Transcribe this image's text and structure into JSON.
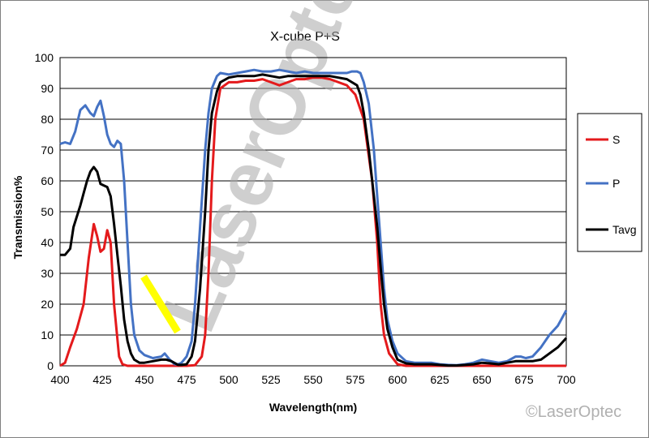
{
  "chart_data": {
    "type": "line",
    "title": "X-cube P+S",
    "xlabel": "Wavelength(nm)",
    "ylabel": "Transmission%",
    "xlim": [
      400,
      700
    ],
    "ylim": [
      0,
      100
    ],
    "x_ticks": [
      400,
      425,
      450,
      475,
      500,
      525,
      550,
      575,
      600,
      625,
      650,
      675,
      700
    ],
    "y_ticks": [
      0,
      10,
      20,
      30,
      40,
      50,
      60,
      70,
      80,
      90,
      100
    ],
    "grid": "horizontal",
    "legend_position": "right",
    "series": [
      {
        "name": "S",
        "color": "#e41a1c",
        "x": [
          400,
          403,
          406,
          410,
          414,
          417,
          420,
          422,
          424,
          426,
          428,
          430,
          432,
          435,
          437,
          440,
          445,
          450,
          460,
          470,
          475,
          480,
          484,
          486,
          488,
          490,
          492,
          495,
          500,
          505,
          510,
          515,
          520,
          525,
          530,
          535,
          540,
          545,
          550,
          555,
          560,
          565,
          570,
          575,
          580,
          585,
          588,
          590,
          592,
          595,
          600,
          605,
          610,
          620,
          630,
          640,
          650,
          660,
          670,
          680,
          690,
          700
        ],
        "y": [
          0,
          1,
          6,
          12,
          20,
          35,
          46,
          42,
          37,
          38,
          44,
          40,
          20,
          3,
          0.5,
          0,
          0,
          0,
          0,
          0,
          0,
          0.2,
          3,
          10,
          30,
          60,
          80,
          90,
          92,
          92,
          92.5,
          92.5,
          93,
          92,
          91,
          92,
          93,
          93,
          93.5,
          93.5,
          93,
          92,
          91,
          88,
          80,
          60,
          40,
          20,
          10,
          4,
          0.5,
          0,
          0,
          0,
          0,
          0,
          0,
          0,
          0,
          0,
          0,
          0
        ]
      },
      {
        "name": "P",
        "color": "#4472c4",
        "x": [
          400,
          403,
          406,
          409,
          412,
          415,
          418,
          420,
          422,
          424,
          426,
          428,
          430,
          432,
          434,
          436,
          438,
          440,
          442,
          444,
          447,
          450,
          455,
          460,
          462,
          465,
          468,
          470,
          472,
          475,
          478,
          480,
          483,
          486,
          488,
          490,
          493,
          495,
          500,
          505,
          510,
          515,
          520,
          525,
          530,
          535,
          540,
          545,
          550,
          555,
          560,
          565,
          570,
          573,
          576,
          578,
          580,
          583,
          586,
          588,
          590,
          592,
          594,
          597,
          600,
          605,
          610,
          615,
          620,
          625,
          630,
          635,
          640,
          645,
          650,
          655,
          660,
          665,
          670,
          673,
          676,
          680,
          685,
          690,
          695,
          700
        ],
        "y": [
          72,
          72.5,
          72,
          76,
          83,
          84.5,
          82,
          81,
          84,
          86,
          81,
          75,
          72,
          71,
          73,
          72,
          60,
          40,
          20,
          10,
          5,
          3.5,
          2.5,
          3,
          4,
          2,
          0.5,
          0.5,
          1,
          3,
          8,
          20,
          45,
          70,
          82,
          90,
          94,
          95,
          94.5,
          95,
          95.5,
          96,
          95.5,
          95.5,
          96,
          95.5,
          95,
          95.5,
          95,
          95,
          95,
          95,
          95,
          95.5,
          95.5,
          95,
          92,
          85,
          70,
          55,
          40,
          25,
          15,
          8,
          4,
          1.5,
          1,
          1,
          1,
          0.5,
          0.3,
          0.2,
          0.5,
          1,
          2,
          1.5,
          1,
          1.5,
          3,
          3,
          2.5,
          3,
          6,
          10,
          13,
          18
        ]
      },
      {
        "name": "Tavg",
        "color": "#000000",
        "x": [
          400,
          403,
          406,
          408,
          412,
          414,
          416,
          418,
          420,
          422,
          424,
          426,
          428,
          430,
          432,
          434,
          436,
          438,
          440,
          442,
          444,
          447,
          450,
          455,
          460,
          463,
          466,
          470,
          472,
          475,
          478,
          480,
          483,
          486,
          488,
          490,
          493,
          495,
          500,
          505,
          510,
          515,
          520,
          525,
          530,
          535,
          540,
          545,
          550,
          555,
          560,
          565,
          570,
          573,
          576,
          578,
          580,
          583,
          586,
          588,
          590,
          592,
          594,
          597,
          600,
          605,
          610,
          615,
          620,
          625,
          630,
          635,
          640,
          645,
          650,
          655,
          660,
          665,
          670,
          673,
          676,
          680,
          685,
          690,
          695,
          700
        ],
        "y": [
          36,
          36,
          38,
          45,
          52,
          56,
          60,
          63,
          64.5,
          63,
          59,
          58.5,
          58,
          55,
          46,
          36,
          26,
          15,
          8,
          4,
          2,
          1,
          1,
          1.5,
          2,
          2,
          1.5,
          0.3,
          0.3,
          0.5,
          3,
          8,
          25,
          50,
          70,
          82,
          89,
          92,
          93.5,
          94,
          94,
          94,
          94.5,
          94,
          93.5,
          94,
          94,
          94,
          94,
          94,
          94,
          93.5,
          93,
          92,
          91,
          88,
          82,
          70,
          55,
          45,
          32,
          20,
          12,
          6,
          2,
          0.8,
          0.5,
          0.5,
          0.5,
          0.3,
          0.1,
          0.1,
          0.3,
          0.5,
          1,
          0.8,
          0.5,
          1,
          1.5,
          1.5,
          1.5,
          1.5,
          2,
          4,
          6,
          9
        ]
      }
    ],
    "annotations": {
      "watermark": "LaserOptec",
      "copyright": "©LaserOptec",
      "highlight_bar_color": "#ffff00"
    }
  }
}
